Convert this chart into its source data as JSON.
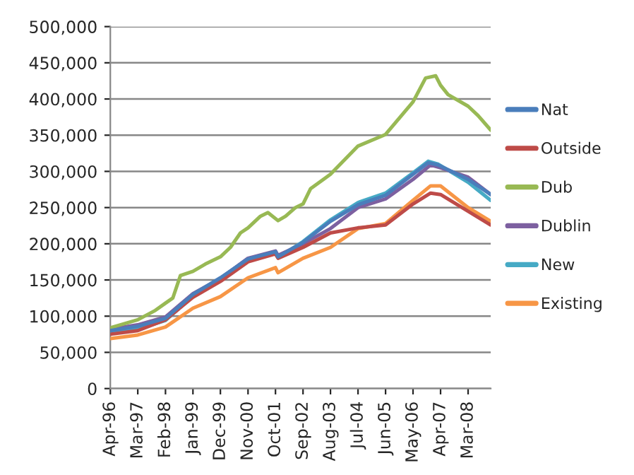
{
  "chart_data": {
    "type": "line",
    "xlim": [
      "1996-04",
      "2008-12"
    ],
    "ylim": [
      0,
      500000
    ],
    "yticks": [
      {
        "value": 0,
        "label": "0"
      },
      {
        "value": 50000,
        "label": "50,000"
      },
      {
        "value": 100000,
        "label": "100,000"
      },
      {
        "value": 150000,
        "label": "150,000"
      },
      {
        "value": 200000,
        "label": "200,000"
      },
      {
        "value": 250000,
        "label": "250,000"
      },
      {
        "value": 300000,
        "label": "300,000"
      },
      {
        "value": 350000,
        "label": "350,000"
      },
      {
        "value": 400000,
        "label": "400,000"
      },
      {
        "value": 450000,
        "label": "450,000"
      },
      {
        "value": 500000,
        "label": "500,000"
      }
    ],
    "xticks": [
      {
        "value": "1996-04",
        "label": "Apr-96"
      },
      {
        "value": "1997-03",
        "label": "Mar-97"
      },
      {
        "value": "1998-02",
        "label": "Feb-98"
      },
      {
        "value": "1999-01",
        "label": "Jan-99"
      },
      {
        "value": "1999-12",
        "label": "Dec-99"
      },
      {
        "value": "2000-11",
        "label": "Nov-00"
      },
      {
        "value": "2001-10",
        "label": "Oct-01"
      },
      {
        "value": "2002-09",
        "label": "Sep-02"
      },
      {
        "value": "2003-08",
        "label": "Aug-03"
      },
      {
        "value": "2004-07",
        "label": "Jul-04"
      },
      {
        "value": "2005-06",
        "label": "Jun-05"
      },
      {
        "value": "2006-05",
        "label": "May-06"
      },
      {
        "value": "2007-04",
        "label": "Apr-07"
      },
      {
        "value": "2008-03",
        "label": "Mar-08"
      }
    ],
    "grid": "y",
    "legend": "right",
    "line_style": "solid",
    "marker": "none",
    "series": [
      {
        "name": "Nat",
        "color": "#4a7ebb",
        "x": [
          "1996-04",
          "1997-03",
          "1998-02",
          "1999-01",
          "1999-12",
          "2000-11",
          "2001-10",
          "2001-11",
          "2002-09",
          "2003-08",
          "2004-07",
          "2005-06",
          "2006-05",
          "2006-11",
          "2007-03",
          "2008-03",
          "2008-12"
        ],
        "values": [
          80000,
          86000,
          97000,
          130000,
          153000,
          179000,
          189000,
          182000,
          202000,
          231000,
          254000,
          267000,
          296000,
          312000,
          309000,
          289000,
          268000
        ]
      },
      {
        "name": "Outside",
        "color": "#be4b48",
        "x": [
          "1996-04",
          "1997-03",
          "1998-02",
          "1999-01",
          "1999-12",
          "2000-11",
          "2001-10",
          "2001-11",
          "2002-09",
          "2003-08",
          "2004-07",
          "2005-06",
          "2006-05",
          "2006-12",
          "2007-04",
          "2008-03",
          "2008-12"
        ],
        "values": [
          75000,
          80000,
          95000,
          126000,
          148000,
          175000,
          186000,
          180000,
          195000,
          215000,
          222000,
          226000,
          255000,
          270000,
          268000,
          245000,
          226000
        ]
      },
      {
        "name": "Dub",
        "color": "#98b954",
        "x": [
          "1996-04",
          "1997-03",
          "1997-10",
          "1998-02",
          "1998-05",
          "1998-08",
          "1999-01",
          "1999-06",
          "1999-12",
          "2000-04",
          "2000-08",
          "2000-11",
          "2001-04",
          "2001-07",
          "2001-11",
          "2002-02",
          "2002-06",
          "2002-09",
          "2002-12",
          "2003-08",
          "2004-07",
          "2005-06",
          "2006-05",
          "2006-10",
          "2007-02",
          "2007-04",
          "2007-07",
          "2008-03",
          "2008-07",
          "2008-12"
        ],
        "values": [
          84000,
          95000,
          108000,
          118000,
          125000,
          156000,
          162000,
          172000,
          182000,
          195000,
          215000,
          222000,
          238000,
          243000,
          232000,
          238000,
          250000,
          255000,
          276000,
          296000,
          335000,
          351000,
          396000,
          429000,
          432000,
          419000,
          406000,
          390000,
          377000,
          357000
        ]
      },
      {
        "name": "Dublin",
        "color": "#7d60a0",
        "x": [
          "1996-04",
          "1997-03",
          "1998-02",
          "1999-01",
          "1999-12",
          "2000-11",
          "2001-10",
          "2001-11",
          "2002-09",
          "2003-08",
          "2004-07",
          "2005-06",
          "2006-05",
          "2006-12",
          "2007-04",
          "2008-03",
          "2008-12"
        ],
        "values": [
          82000,
          88000,
          99000,
          131000,
          152000,
          180000,
          190000,
          184000,
          200000,
          221000,
          250000,
          262000,
          289000,
          309000,
          305000,
          292000,
          268000
        ]
      },
      {
        "name": "New",
        "color": "#46aac5",
        "x": [
          "1996-04",
          "1997-03",
          "1998-02",
          "1999-01",
          "1999-12",
          "2000-11",
          "2001-10",
          "2001-11",
          "2002-09",
          "2003-08",
          "2004-07",
          "2005-06",
          "2006-05",
          "2006-11",
          "2007-03",
          "2008-03",
          "2008-12"
        ],
        "values": [
          76000,
          82000,
          94000,
          128000,
          152000,
          178000,
          188000,
          181000,
          203000,
          233000,
          257000,
          270000,
          298000,
          314000,
          310000,
          285000,
          260000
        ]
      },
      {
        "name": "Existing",
        "color": "#f79646",
        "x": [
          "1996-04",
          "1997-03",
          "1998-02",
          "1999-01",
          "1999-12",
          "2000-11",
          "2001-10",
          "2001-11",
          "2002-09",
          "2003-08",
          "2004-07",
          "2005-06",
          "2006-05",
          "2006-12",
          "2007-04",
          "2008-03",
          "2008-12"
        ],
        "values": [
          69000,
          74000,
          85000,
          111000,
          127000,
          153000,
          167000,
          160000,
          180000,
          195000,
          221000,
          228000,
          260000,
          280000,
          280000,
          250000,
          231000
        ]
      }
    ]
  }
}
